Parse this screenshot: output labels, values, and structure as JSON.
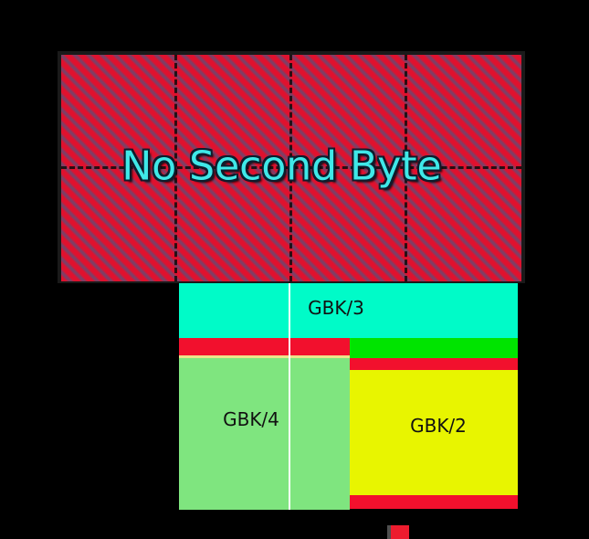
{
  "colors": {
    "background": "#000000",
    "border": "#1a1a1a",
    "hatch-red": "#e0112e",
    "hatch-purple": "#7d3f66",
    "no-second-byte-text": "#3fe8e8",
    "no-second-byte-outline": "#0e1c2c",
    "gbk3": "#00fbc8",
    "gbk4": "#7fe57f",
    "gbk2": "#e8f500",
    "stripe-red": "#f2102d",
    "stripe-green": "#00e400",
    "stripe-pale": "#ede38a",
    "divider": "#ffffff",
    "legend-red": "#ed1c2e",
    "legend-edge": "#4f4f4f",
    "label-text": "#111111"
  },
  "no_second_byte": {
    "label": "No Second Byte"
  },
  "regions": {
    "gbk3": {
      "label": "GBK/3"
    },
    "gbk4": {
      "label": "GBK/4"
    },
    "gbk2": {
      "label": "GBK/2"
    }
  }
}
